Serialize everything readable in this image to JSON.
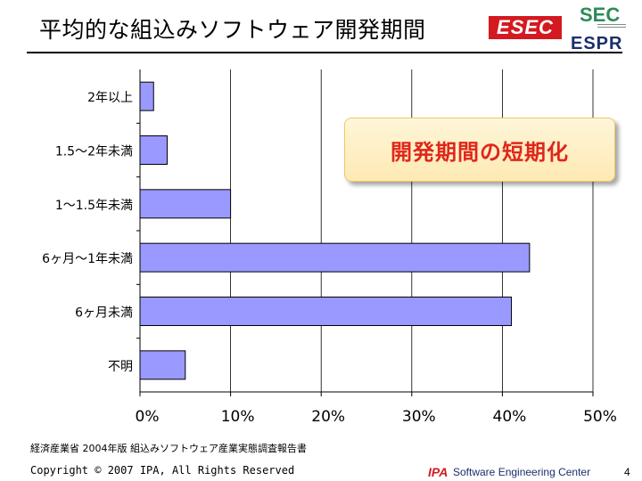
{
  "slide": {
    "title": "平均的な組込みソフトウェア開発期間",
    "logo_esec": "ESEC",
    "logo_sec": "SEC",
    "logo_espr": "ESPR",
    "callout": "開発期間の短期化",
    "source_note": "経済産業省 2004年版 組込みソフトウェア産業実態調査報告書",
    "copyright": "Copyright © 2007 IPA, All Rights Reserved",
    "footer_ipa": "IPA",
    "footer_center": "Software Engineering Center",
    "page_number": "4"
  },
  "colors": {
    "bar_fill": "#9999ff",
    "bar_stroke": "#000000",
    "callout_text": "#e0261a",
    "esec_red": "#d41920"
  },
  "chart_data": {
    "type": "bar",
    "orientation": "horizontal",
    "categories": [
      "2年以上",
      "1.5～2年未満",
      "1～1.5年未満",
      "6ヶ月～1年未満",
      "6ヶ月未満",
      "不明"
    ],
    "values": [
      0.3,
      0.6,
      2.0,
      8.6,
      8.2,
      1.0
    ],
    "xlim": [
      0,
      10
    ],
    "tick_labels": [
      "0%",
      "10%",
      "20%",
      "30%",
      "40%",
      "50%"
    ],
    "grid": "vertical",
    "legend": "none"
  }
}
